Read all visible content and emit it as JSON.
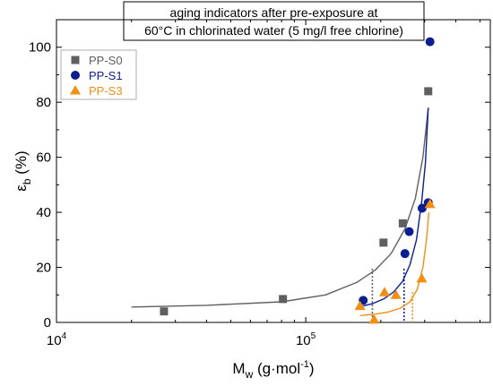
{
  "chart_data": {
    "type": "scatter",
    "title_lines": [
      "aging indicators after pre-exposure at",
      "60°C in chlorinated water (5 mg/l free chlorine)"
    ],
    "xlabel": "M",
    "xlabel_sub": "w",
    "xlabel_units_pre": " (g·mol",
    "xlabel_units_sup": "-1",
    "xlabel_units_post": ")",
    "ylabel": "ε",
    "ylabel_sub": "b",
    "ylabel_units": " (%)",
    "x_scale": "log",
    "xlim": [
      10000,
      550000
    ],
    "ylim": [
      0,
      110
    ],
    "y_ticks": [
      0,
      20,
      40,
      60,
      80,
      100
    ],
    "x_ticks": [
      {
        "value": 10000,
        "base": "10",
        "exp": "4"
      },
      {
        "value": 100000,
        "base": "10",
        "exp": "5"
      }
    ],
    "grid": false,
    "legend_position": "top-left",
    "series": [
      {
        "name": "PP-S0",
        "color": "#5f5f5f",
        "marker": "square",
        "points": [
          [
            27000,
            4
          ],
          [
            81000,
            8.5
          ],
          [
            205000,
            29
          ],
          [
            245000,
            36
          ],
          [
            310000,
            84
          ]
        ],
        "fit": [
          [
            20000,
            5.6
          ],
          [
            40000,
            6.2
          ],
          [
            80000,
            7.5
          ],
          [
            120000,
            10
          ],
          [
            160000,
            14.5
          ],
          [
            190000,
            19
          ],
          [
            220000,
            25
          ],
          [
            250000,
            34
          ],
          [
            275000,
            45
          ],
          [
            295000,
            60
          ],
          [
            310000,
            78
          ]
        ]
      },
      {
        "name": "PP-S1",
        "color": "#0b1d8f",
        "marker": "circle",
        "points": [
          [
            170000,
            8
          ],
          [
            250000,
            25
          ],
          [
            260000,
            33
          ],
          [
            293000,
            41.5
          ],
          [
            310000,
            43.5
          ],
          [
            315000,
            102
          ]
        ],
        "fit": [
          [
            170000,
            6
          ],
          [
            185000,
            6.8
          ],
          [
            205000,
            8.5
          ],
          [
            225000,
            11
          ],
          [
            245000,
            15
          ],
          [
            262000,
            21
          ],
          [
            278000,
            30
          ],
          [
            292000,
            44
          ],
          [
            302000,
            58
          ],
          [
            310000,
            78
          ]
        ]
      },
      {
        "name": "PP-S3",
        "color": "#f28e14",
        "marker": "triangle",
        "points": [
          [
            165000,
            6
          ],
          [
            188000,
            1
          ],
          [
            207000,
            11
          ],
          [
            230000,
            10
          ],
          [
            292000,
            16
          ],
          [
            315000,
            43
          ]
        ],
        "fit": [
          [
            165000,
            2.5
          ],
          [
            190000,
            3
          ],
          [
            215000,
            3.8
          ],
          [
            240000,
            5.2
          ],
          [
            262000,
            7.5
          ],
          [
            280000,
            12
          ],
          [
            295000,
            20
          ],
          [
            305000,
            30
          ],
          [
            312000,
            40
          ]
        ]
      }
    ],
    "drop_lines": [
      {
        "x": 185000,
        "y": 19.5,
        "color": "#5f5f5f"
      },
      {
        "x": 248000,
        "y": 19.5,
        "color": "#0b1d8f"
      },
      {
        "x": 268000,
        "y": 11,
        "color": "#f28e14"
      }
    ]
  }
}
